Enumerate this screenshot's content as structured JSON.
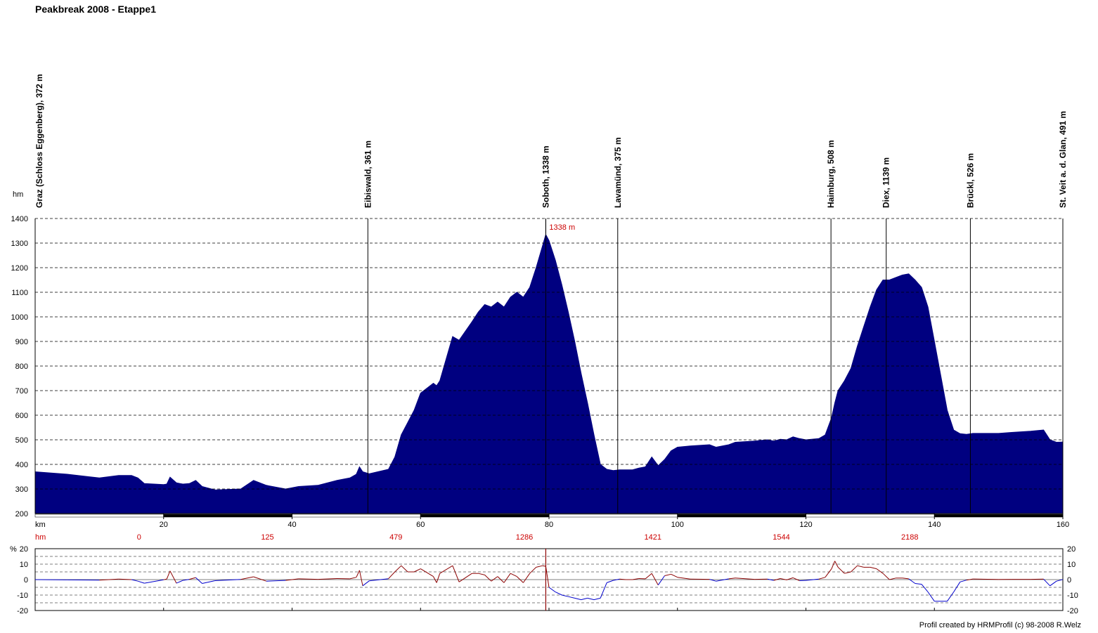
{
  "title": "Peakbreak 2008 - Etappe1",
  "footer": "Profil created by HRMProfil (c) 98-2008 R.Welz",
  "colors": {
    "profile_fill": "#000080",
    "grid": "#000000",
    "hm_text": "#cc0000",
    "grad_up": "#8b0000",
    "grad_down": "#0000cc",
    "axis_band": "#000000"
  },
  "chart_data": [
    {
      "type": "area",
      "ylabel": "hm",
      "xlabel": "km",
      "xlim": [
        0,
        160
      ],
      "ylim": [
        200,
        1400
      ],
      "y_ticks": [
        200,
        300,
        400,
        500,
        600,
        700,
        800,
        900,
        1000,
        1100,
        1200,
        1300,
        1400
      ],
      "x_ticks": [
        20,
        40,
        60,
        80,
        100,
        120,
        140,
        160
      ],
      "grid": "horizontal dashed",
      "peak_annotation": {
        "x": 79.5,
        "y": 1338,
        "label": "1338 m"
      },
      "waypoints": [
        {
          "label": "Graz (Schloss Eggenberg), 372 m",
          "km": 0
        },
        {
          "label": "Eibiswald, 361 m",
          "km": 51.8
        },
        {
          "label": "Soboth, 1338 m",
          "km": 79.5
        },
        {
          "label": "Lavamünd, 375 m",
          "km": 90.7
        },
        {
          "label": "Haimburg, 508 m",
          "km": 123.9
        },
        {
          "label": "Diex, 1139 m",
          "km": 132.5
        },
        {
          "label": "Brückl, 526 m",
          "km": 145.6
        },
        {
          "label": "St. Veit a. d. Glan, 491 m",
          "km": 160
        }
      ],
      "cumulative_hm": {
        "label": "hm",
        "entries": [
          {
            "km": 20,
            "value": "0"
          },
          {
            "km": 40,
            "value": "125"
          },
          {
            "km": 60,
            "value": "479"
          },
          {
            "km": 80,
            "value": "1286"
          },
          {
            "km": 100,
            "value": "1421"
          },
          {
            "km": 120,
            "value": "1544"
          },
          {
            "km": 140,
            "value": "2188"
          }
        ]
      },
      "x": [
        0,
        5,
        10,
        13,
        15,
        16,
        17,
        20,
        20.5,
        21,
        22,
        23,
        24,
        25,
        26,
        28,
        32,
        34,
        36,
        39,
        41,
        44,
        47,
        49,
        50,
        50.5,
        51,
        52,
        55,
        56,
        57,
        58,
        59,
        60,
        62,
        62.5,
        63,
        65,
        66,
        68,
        69,
        70,
        71,
        72,
        73,
        74,
        75,
        76,
        77,
        78,
        79,
        79.5,
        80,
        81,
        82,
        83,
        84,
        85,
        86,
        87,
        88,
        89,
        90,
        91,
        92,
        93,
        94,
        95,
        96,
        97,
        98,
        99,
        100,
        102,
        105,
        106,
        108,
        109,
        112,
        114,
        115,
        116,
        117,
        118,
        119,
        120,
        122,
        123,
        124,
        124.5,
        125,
        126,
        127,
        128,
        129,
        130,
        131,
        132,
        133,
        134,
        135,
        136,
        137,
        138,
        139,
        140,
        141,
        142,
        143,
        144,
        145,
        146,
        150,
        152,
        155,
        157,
        158,
        159,
        160
      ],
      "y": [
        370,
        360,
        345,
        355,
        355,
        345,
        322,
        318,
        320,
        348,
        325,
        320,
        322,
        335,
        310,
        296,
        300,
        335,
        315,
        300,
        310,
        315,
        335,
        345,
        360,
        390,
        370,
        362,
        380,
        430,
        520,
        570,
        620,
        690,
        730,
        720,
        740,
        920,
        905,
        980,
        1020,
        1050,
        1040,
        1060,
        1040,
        1080,
        1100,
        1080,
        1120,
        1200,
        1290,
        1335,
        1310,
        1230,
        1130,
        1020,
        900,
        770,
        650,
        520,
        400,
        380,
        375,
        378,
        378,
        378,
        385,
        390,
        430,
        395,
        420,
        455,
        470,
        475,
        480,
        470,
        480,
        490,
        495,
        500,
        495,
        502,
        500,
        512,
        505,
        500,
        505,
        520,
        590,
        650,
        700,
        740,
        790,
        880,
        960,
        1040,
        1110,
        1150,
        1150,
        1160,
        1170,
        1175,
        1150,
        1120,
        1040,
        900,
        760,
        620,
        540,
        525,
        522,
        526,
        526,
        530,
        535,
        540,
        500,
        490,
        491
      ]
    },
    {
      "type": "line",
      "ylabel": "%",
      "xlim": [
        0,
        160
      ],
      "ylim": [
        -20,
        20
      ],
      "y_ticks": [
        -20,
        -10,
        0,
        10,
        20
      ],
      "grid": "horizontal dashed",
      "series": [
        {
          "x": [
            0,
            5,
            10,
            13,
            15,
            16,
            17,
            20,
            20.5,
            21,
            22,
            23,
            24,
            25,
            26,
            28,
            32,
            34,
            36,
            39,
            41,
            44,
            47,
            49,
            50,
            50.5,
            51,
            52,
            55,
            56,
            57,
            58,
            59,
            60,
            62,
            62.5,
            63,
            65,
            66,
            68,
            69,
            70,
            71,
            72,
            73,
            74,
            75,
            76,
            77,
            78,
            79,
            79.5,
            80,
            81,
            82,
            83,
            84,
            85,
            86,
            87,
            88,
            89,
            90,
            91,
            92,
            93,
            94,
            95,
            96,
            97,
            98,
            99,
            100,
            102,
            105,
            106,
            108,
            109,
            112,
            114,
            115,
            116,
            117,
            118,
            119,
            120,
            122,
            123,
            124,
            124.5,
            125,
            126,
            127,
            128,
            129,
            130,
            131,
            132,
            133,
            134,
            135,
            136,
            137,
            138,
            139,
            140,
            141,
            142,
            143,
            144,
            145,
            146,
            150,
            152,
            155,
            157,
            158,
            159,
            160
          ],
          "values": [
            0,
            -0.2,
            -0.3,
            0.3,
            0,
            -1.0,
            -2.3,
            -0.1,
            0.4,
            5.6,
            -2.3,
            -0.5,
            0.2,
            1.3,
            -2.5,
            -0.7,
            0.1,
            1.8,
            -1.0,
            -0.5,
            0.5,
            0.2,
            0.7,
            0.5,
            1.5,
            6.0,
            -4.0,
            -0.8,
            0.6,
            5.0,
            9.0,
            5.0,
            5.0,
            7.0,
            2.0,
            -2.0,
            4.0,
            9.0,
            -1.5,
            4.0,
            4.0,
            3.0,
            -1.0,
            2.0,
            -2.0,
            4.0,
            2.0,
            -2.0,
            4.0,
            8.0,
            9.0,
            8.6,
            -5.0,
            -8.0,
            -10.0,
            -11.0,
            -12.0,
            -13.0,
            -12.0,
            -13.0,
            -12.0,
            -2.0,
            -0.5,
            0.3,
            0,
            0,
            0.7,
            0.5,
            4.0,
            -3.5,
            2.5,
            3.5,
            1.5,
            0.3,
            0.2,
            -1.0,
            0.5,
            1.0,
            0.2,
            0.3,
            -0.5,
            0.7,
            -0.2,
            1.2,
            -0.7,
            -0.5,
            0.3,
            1.5,
            7.0,
            12.0,
            8.0,
            4.0,
            5.0,
            9.0,
            8.0,
            8.0,
            7.0,
            4.0,
            0,
            1.0,
            1.0,
            0.5,
            -2.5,
            -3.0,
            -8.0,
            -14.0,
            -14.0,
            -14.0,
            -8.0,
            -1.5,
            -0.3,
            0.4,
            0.1,
            0.2,
            0.2,
            0.3,
            -4.0,
            -1.0,
            0.1
          ]
        }
      ]
    }
  ]
}
